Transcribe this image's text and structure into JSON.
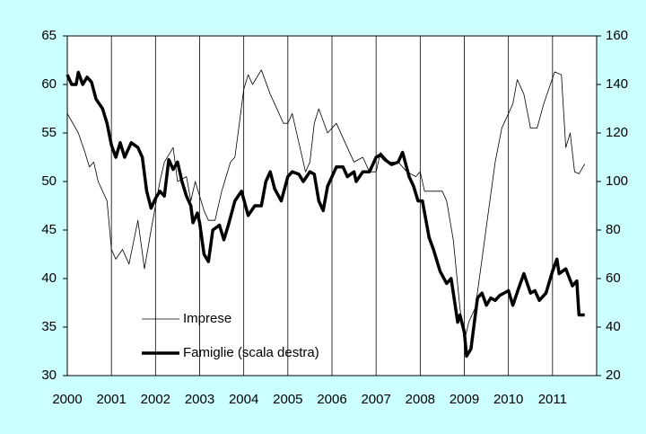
{
  "chart_data": {
    "type": "line",
    "xlim": [
      2000,
      2012
    ],
    "xticks": [
      2000,
      2001,
      2002,
      2003,
      2004,
      2005,
      2006,
      2007,
      2008,
      2009,
      2010,
      2011
    ],
    "ylim": [
      30,
      65
    ],
    "yticks": [
      30,
      35,
      40,
      45,
      50,
      55,
      60,
      65
    ],
    "y2lim": [
      20,
      160
    ],
    "y2ticks": [
      20,
      40,
      60,
      80,
      100,
      120,
      140,
      160
    ],
    "grid": true,
    "series": [
      {
        "name": "Imprese",
        "color": "#000000",
        "width": 0.8,
        "x": [
          2000.0,
          2000.25,
          2000.4,
          2000.5,
          2000.6,
          2000.7,
          2000.9,
          2001.0,
          2001.1,
          2001.25,
          2001.4,
          2001.6,
          2001.75,
          2001.9,
          2002.1,
          2002.2,
          2002.4,
          2002.5,
          2002.7,
          2002.8,
          2002.9,
          2003.1,
          2003.2,
          2003.35,
          2003.5,
          2003.7,
          2003.8,
          2003.9,
          2004.0,
          2004.1,
          2004.2,
          2004.4,
          2004.6,
          2004.8,
          2004.9,
          2005.0,
          2005.1,
          2005.25,
          2005.4,
          2005.5,
          2005.6,
          2005.7,
          2005.9,
          2006.1,
          2006.3,
          2006.5,
          2006.7,
          2006.85,
          2007.0,
          2007.1,
          2007.3,
          2007.5,
          2007.7,
          2007.9,
          2008.0,
          2008.1,
          2008.3,
          2008.5,
          2008.6,
          2008.75,
          2008.9,
          2009.0,
          2009.1,
          2009.25,
          2009.4,
          2009.55,
          2009.7,
          2009.85,
          2010.0,
          2010.1,
          2010.2,
          2010.35,
          2010.5,
          2010.65,
          2010.8,
          2010.95,
          2011.05,
          2011.2,
          2011.3,
          2011.4,
          2011.5,
          2011.6,
          2011.73
        ],
        "values": [
          57,
          55,
          53,
          51.5,
          52,
          50,
          48,
          43,
          42,
          43,
          41.5,
          46,
          41,
          45,
          50,
          52,
          53.5,
          50,
          50.5,
          48,
          50,
          47,
          46,
          46,
          49,
          52,
          52.5,
          56,
          59.5,
          61,
          60,
          61.5,
          59,
          57,
          56,
          56,
          57,
          54,
          51,
          52,
          56,
          57.5,
          55,
          56,
          54,
          52,
          52.5,
          51,
          51,
          53,
          52,
          52,
          51,
          50.5,
          51,
          49,
          49,
          49,
          48,
          44,
          37,
          33.5,
          35.5,
          37,
          42,
          47,
          52,
          55.5,
          57,
          58,
          60.5,
          59,
          55.5,
          55.5,
          58,
          60,
          61.3,
          61,
          53.5,
          55,
          51,
          50.8,
          51.8
        ]
      },
      {
        "name": "Famiglie (scala destra)",
        "color": "#000000",
        "width": 3.5,
        "axis": "y2",
        "x": [
          2000.0,
          2000.1,
          2000.2,
          2000.25,
          2000.35,
          2000.45,
          2000.55,
          2000.65,
          2000.8,
          2000.9,
          2001.0,
          2001.1,
          2001.2,
          2001.3,
          2001.45,
          2001.6,
          2001.7,
          2001.8,
          2001.9,
          2002.0,
          2002.1,
          2002.2,
          2002.3,
          2002.4,
          2002.5,
          2002.6,
          2002.7,
          2002.8,
          2002.85,
          2002.95,
          2003.0,
          2003.1,
          2003.2,
          2003.3,
          2003.45,
          2003.55,
          2003.65,
          2003.8,
          2003.95,
          2004.1,
          2004.25,
          2004.4,
          2004.5,
          2004.6,
          2004.7,
          2004.85,
          2005.0,
          2005.1,
          2005.25,
          2005.35,
          2005.5,
          2005.6,
          2005.7,
          2005.8,
          2005.9,
          2006.0,
          2006.1,
          2006.25,
          2006.35,
          2006.5,
          2006.55,
          2006.7,
          2006.85,
          2007.0,
          2007.1,
          2007.2,
          2007.35,
          2007.5,
          2007.6,
          2007.75,
          2007.85,
          2007.95,
          2008.05,
          2008.2,
          2008.3,
          2008.45,
          2008.6,
          2008.7,
          2008.8,
          2008.85,
          2008.9,
          2009.0,
          2009.05,
          2009.15,
          2009.3,
          2009.4,
          2009.5,
          2009.6,
          2009.7,
          2009.8,
          2010.0,
          2010.1,
          2010.25,
          2010.35,
          2010.5,
          2010.6,
          2010.7,
          2010.85,
          2011.0,
          2011.1,
          2011.15,
          2011.3,
          2011.45,
          2011.55,
          2011.6,
          2011.73
        ],
        "values": [
          144,
          140,
          140,
          145,
          140,
          143,
          141,
          134,
          130,
          124,
          115,
          110,
          116,
          110,
          116,
          114,
          110,
          96,
          89,
          93,
          96,
          94,
          109,
          105,
          108,
          100,
          94,
          90,
          83,
          87,
          83,
          70,
          67,
          80,
          82,
          76,
          82,
          92,
          96,
          86,
          90,
          90,
          100,
          104,
          97,
          92,
          102,
          104,
          103,
          100,
          104,
          103,
          92,
          88,
          98,
          102,
          106,
          106,
          102,
          104,
          100,
          104,
          104,
          110,
          111,
          109,
          107,
          108,
          112,
          102,
          98,
          92,
          92,
          77,
          72,
          63,
          58,
          60,
          48,
          42,
          45,
          38,
          28,
          31,
          52,
          54,
          49,
          52,
          51,
          53,
          55,
          49,
          57,
          62,
          54,
          55,
          51,
          54,
          63,
          68,
          62,
          64,
          57,
          59,
          45,
          45
        ]
      }
    ]
  }
}
